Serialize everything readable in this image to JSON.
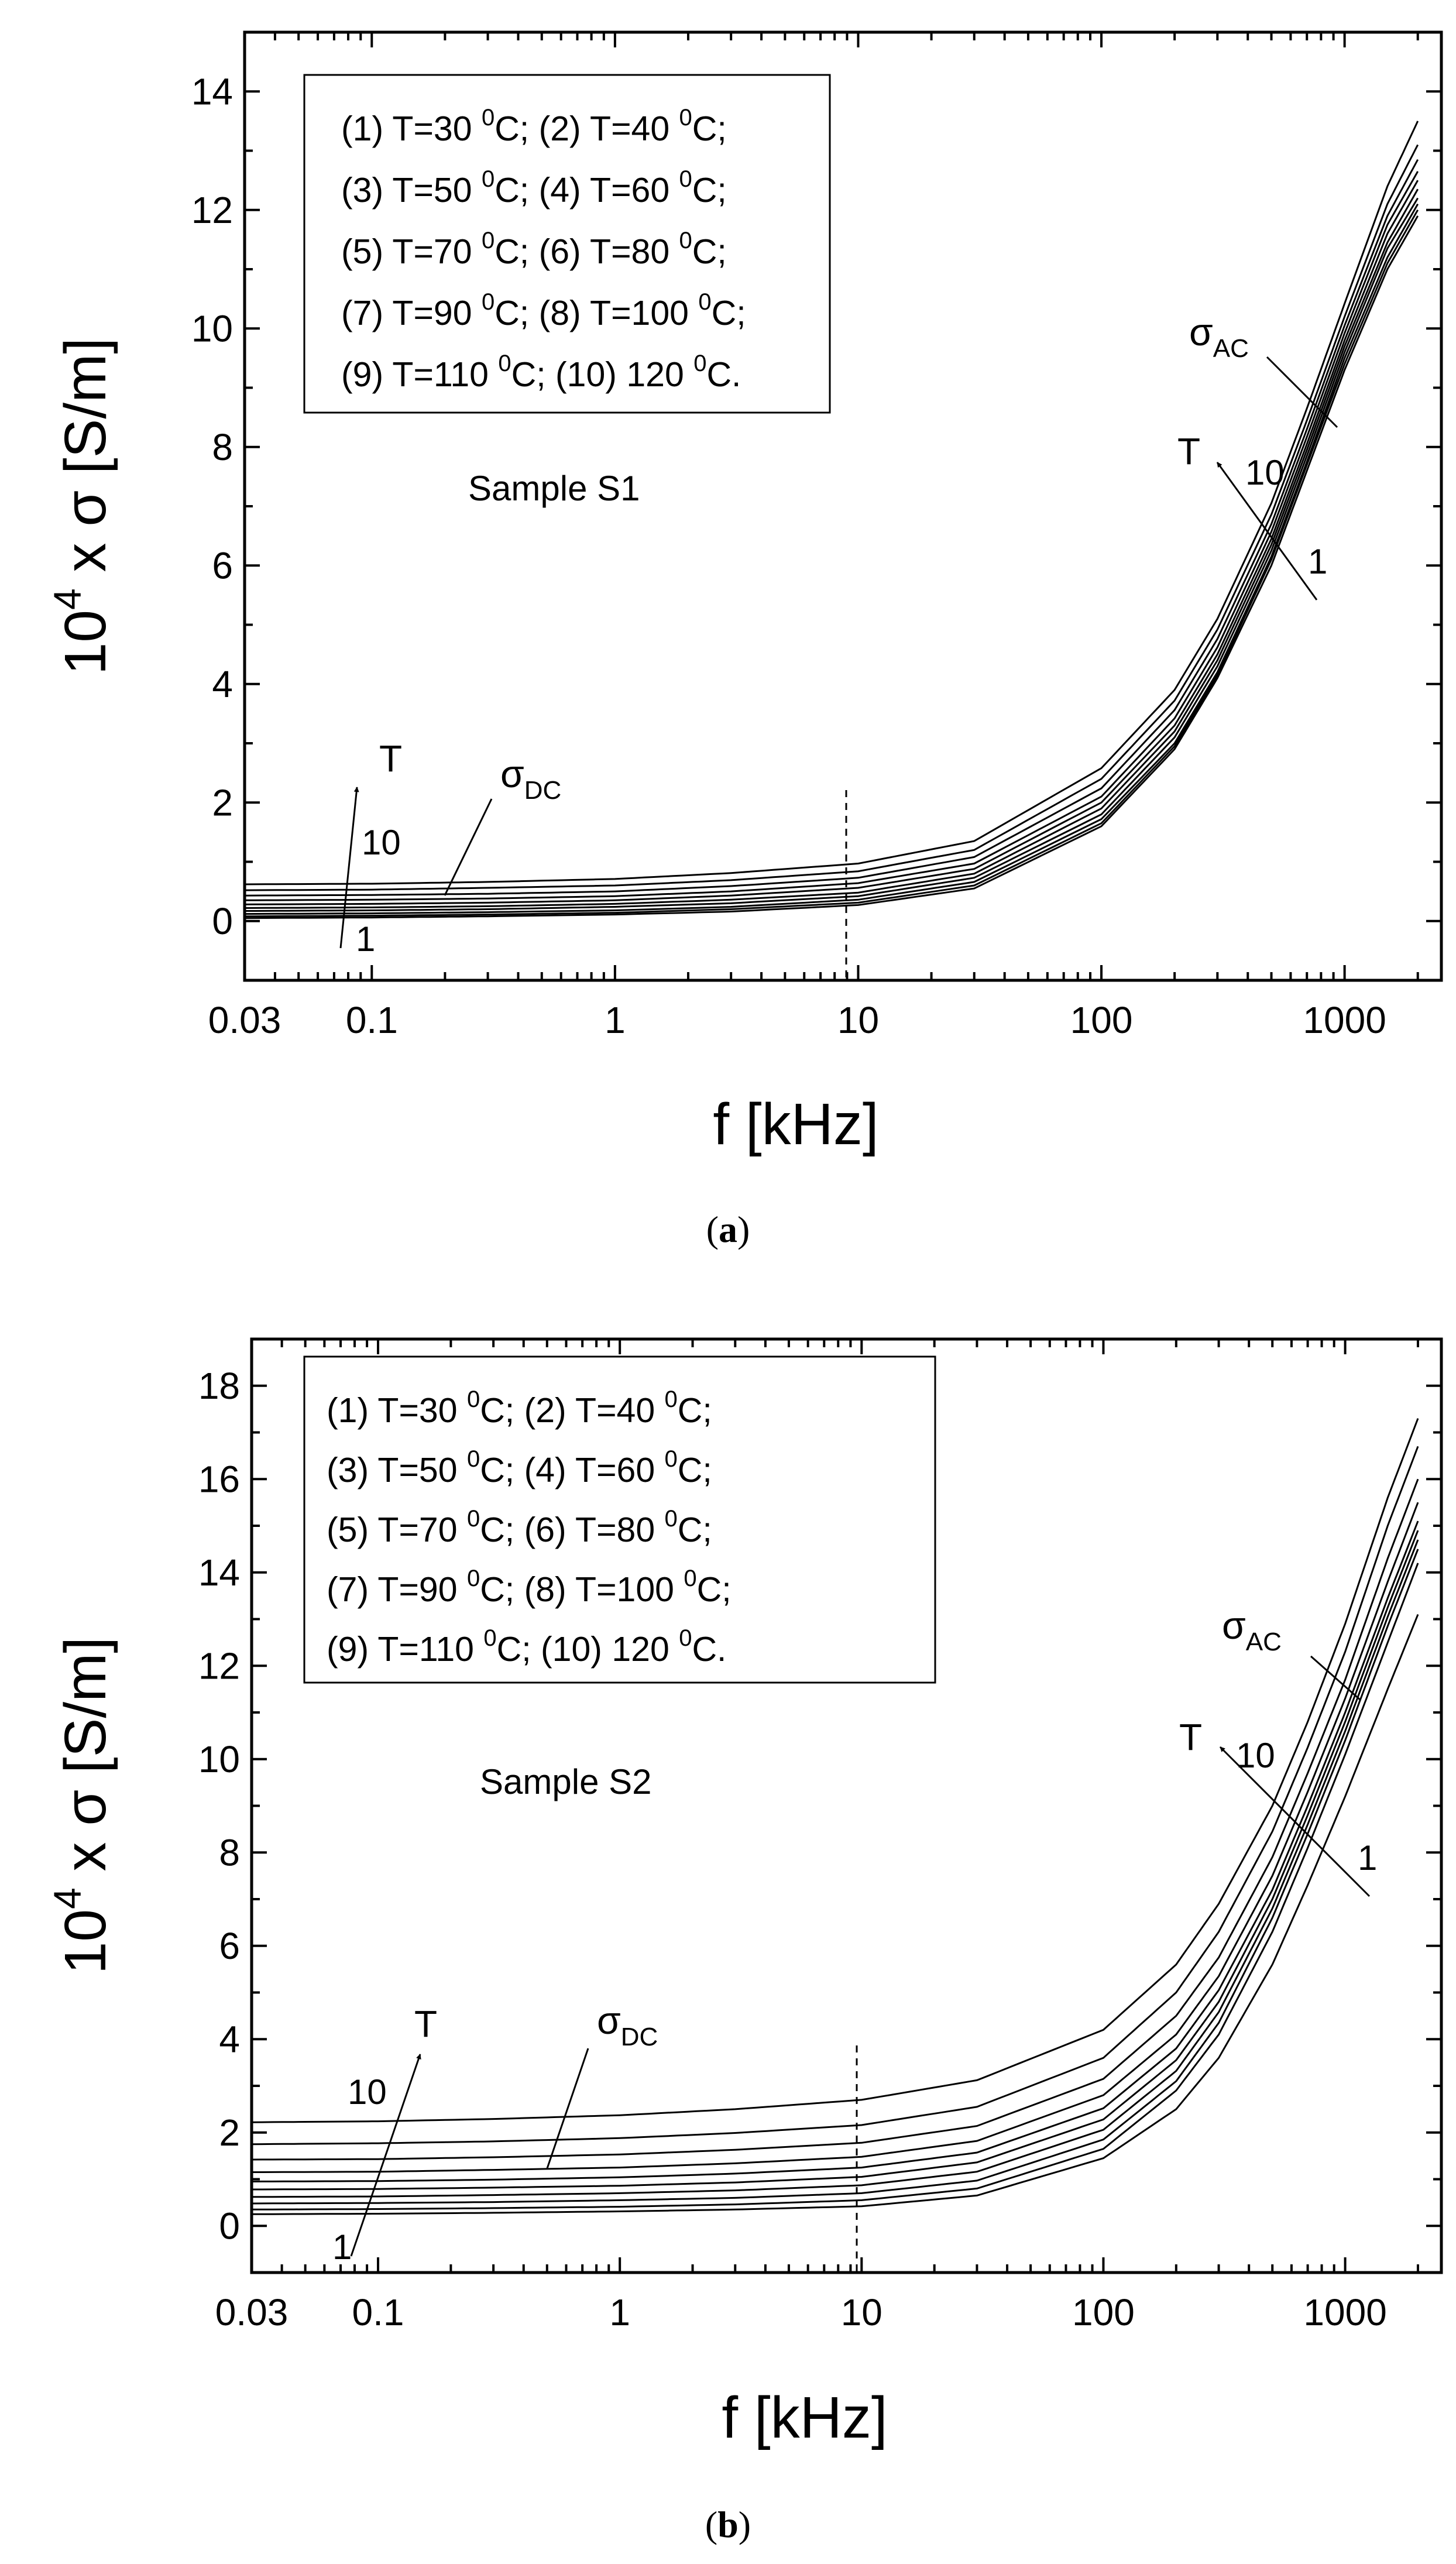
{
  "figure": {
    "panels": [
      {
        "caption_open": "(",
        "caption_letter": "a",
        "caption_close": ")",
        "sample_label": "Sample S1",
        "ylabel": {
          "prefix": "10",
          "exponent": "4",
          "suffix": " x σ [S/m]"
        },
        "xlabel": "f [kHz]",
        "sigma_ac": {
          "main": "σ",
          "sub": "AC"
        },
        "sigma_dc": {
          "main": "σ",
          "sub": "DC"
        },
        "arrow_labels": {
          "T": "T",
          "high": "10",
          "low": "1"
        },
        "xticks": [
          "0.03",
          "0.1",
          "1",
          "10",
          "100",
          "1000"
        ],
        "yticks": [
          "0",
          "2",
          "4",
          "6",
          "8",
          "10",
          "12",
          "14"
        ],
        "legend": [
          [
            "(1) T=30 ",
            "0",
            "C; (2) T=40 ",
            "0",
            "C;"
          ],
          [
            "(3) T=50 ",
            "0",
            "C; (4) T=60 ",
            "0",
            "C;"
          ],
          [
            "(5) T=70 ",
            "0",
            "C; (6) T=80 ",
            "0",
            "C;"
          ],
          [
            "(7) T=90 ",
            "0",
            "C; (8) T=100 ",
            "0",
            "C;"
          ],
          [
            "(9) T=110 ",
            "0",
            "C; (10) 120 ",
            "0",
            "C."
          ]
        ]
      },
      {
        "caption_open": "(",
        "caption_letter": "b",
        "caption_close": ")",
        "sample_label": "Sample S2",
        "ylabel": {
          "prefix": "10",
          "exponent": "4",
          "suffix": " x σ [S/m]"
        },
        "xlabel": "f [kHz]",
        "sigma_ac": {
          "main": "σ",
          "sub": "AC"
        },
        "sigma_dc": {
          "main": "σ",
          "sub": "DC"
        },
        "arrow_labels": {
          "T": "T",
          "high": "10",
          "low": "1"
        },
        "xticks": [
          "0.03",
          "0.1",
          "1",
          "10",
          "100",
          "1000"
        ],
        "yticks": [
          "0",
          "2",
          "4",
          "6",
          "8",
          "10",
          "12",
          "14",
          "16",
          "18"
        ],
        "legend": [
          [
            "(1) T=30 ",
            "0",
            "C; (2) T=40 ",
            "0",
            "C;"
          ],
          [
            "(3) T=50 ",
            "0",
            "C; (4) T=60 ",
            "0",
            "C;"
          ],
          [
            "(5) T=70 ",
            "0",
            "C; (6) T=80 ",
            "0",
            "C;"
          ],
          [
            "(7) T=90 ",
            "0",
            "C; (8) T=100 ",
            "0",
            "C;"
          ],
          [
            "(9) T=110 ",
            "0",
            "C; (10) 120 ",
            "0",
            "C."
          ]
        ]
      }
    ]
  },
  "chart_data": [
    {
      "type": "line",
      "title": "Sample S1",
      "xlabel": "f [kHz]",
      "ylabel": "10^4 x σ [S/m]",
      "xscale": "log",
      "xlim": [
        0.03,
        2500
      ],
      "ylim": [
        -1,
        15
      ],
      "xticks": [
        0.03,
        0.1,
        1,
        10,
        100,
        1000
      ],
      "yticks": [
        0,
        2,
        4,
        6,
        8,
        10,
        12,
        14
      ],
      "grid": false,
      "legend_position": "top-left",
      "reference_line_x": 10,
      "x": [
        0.03,
        0.1,
        0.3,
        1,
        3,
        10,
        30,
        100,
        200,
        300,
        500,
        700,
        1000,
        1500,
        2000
      ],
      "series": [
        {
          "name": "(1) T=30 0C",
          "values": [
            0.05,
            0.06,
            0.08,
            0.11,
            0.16,
            0.27,
            0.55,
            1.6,
            2.9,
            4.1,
            6.0,
            7.6,
            9.3,
            11.0,
            11.9
          ]
        },
        {
          "name": "(2) T=40 0C",
          "values": [
            0.08,
            0.09,
            0.11,
            0.14,
            0.2,
            0.31,
            0.6,
            1.65,
            2.95,
            4.15,
            6.1,
            7.7,
            9.4,
            11.1,
            12.0
          ]
        },
        {
          "name": "(3) T=50 0C",
          "values": [
            0.12,
            0.13,
            0.15,
            0.18,
            0.24,
            0.36,
            0.66,
            1.72,
            3.0,
            4.2,
            6.15,
            7.75,
            9.5,
            11.2,
            12.1
          ]
        },
        {
          "name": "(4) T=60 0C",
          "values": [
            0.17,
            0.18,
            0.2,
            0.24,
            0.3,
            0.42,
            0.73,
            1.8,
            3.1,
            4.3,
            6.25,
            7.85,
            9.6,
            11.35,
            12.2
          ]
        },
        {
          "name": "(5) T=70 0C",
          "values": [
            0.22,
            0.23,
            0.25,
            0.29,
            0.36,
            0.48,
            0.8,
            1.9,
            3.2,
            4.4,
            6.35,
            7.95,
            9.7,
            11.45,
            12.35
          ]
        },
        {
          "name": "(6) T=80 0C",
          "values": [
            0.28,
            0.29,
            0.31,
            0.35,
            0.43,
            0.56,
            0.88,
            2.0,
            3.3,
            4.5,
            6.45,
            8.05,
            9.8,
            11.6,
            12.5
          ]
        },
        {
          "name": "(7) T=90 0C",
          "values": [
            0.35,
            0.36,
            0.38,
            0.42,
            0.5,
            0.64,
            0.97,
            2.1,
            3.42,
            4.62,
            6.57,
            8.17,
            9.92,
            11.75,
            12.65
          ]
        },
        {
          "name": "(8) T=100 0C",
          "values": [
            0.43,
            0.44,
            0.46,
            0.5,
            0.59,
            0.73,
            1.08,
            2.24,
            3.56,
            4.76,
            6.7,
            8.3,
            10.05,
            11.9,
            12.85
          ]
        },
        {
          "name": "(9) T=110 0C",
          "values": [
            0.52,
            0.53,
            0.56,
            0.6,
            0.69,
            0.84,
            1.2,
            2.4,
            3.72,
            4.92,
            6.86,
            8.45,
            10.2,
            12.1,
            13.1
          ]
        },
        {
          "name": "(10) 120 0C",
          "values": [
            0.62,
            0.63,
            0.66,
            0.71,
            0.81,
            0.97,
            1.35,
            2.58,
            3.9,
            5.1,
            7.05,
            8.65,
            10.42,
            12.4,
            13.5
          ]
        }
      ],
      "annotations": [
        "Sample S1",
        "σAC",
        "σDC",
        "T",
        "10",
        "1"
      ]
    },
    {
      "type": "line",
      "title": "Sample S2",
      "xlabel": "f [kHz]",
      "ylabel": "10^4 x σ [S/m]",
      "xscale": "log",
      "xlim": [
        0.03,
        2500
      ],
      "ylim": [
        -1,
        19
      ],
      "xticks": [
        0.03,
        0.1,
        1,
        10,
        100,
        1000
      ],
      "yticks": [
        0,
        2,
        4,
        6,
        8,
        10,
        12,
        14,
        16,
        18
      ],
      "grid": false,
      "legend_position": "top-left",
      "reference_line_x": 10,
      "x": [
        0.03,
        0.1,
        0.3,
        1,
        3,
        10,
        30,
        100,
        200,
        300,
        500,
        700,
        1000,
        1500,
        2000
      ],
      "series": [
        {
          "name": "(1) T=30 0C",
          "values": [
            0.25,
            0.26,
            0.28,
            0.31,
            0.35,
            0.42,
            0.65,
            1.45,
            2.5,
            3.6,
            5.6,
            7.3,
            9.2,
            11.5,
            13.1
          ]
        },
        {
          "name": "(2) T=40 0C",
          "values": [
            0.35,
            0.36,
            0.38,
            0.41,
            0.46,
            0.55,
            0.8,
            1.65,
            2.9,
            4.1,
            6.3,
            8.1,
            10.1,
            12.5,
            14.2
          ]
        },
        {
          "name": "(3) T=50 0C",
          "values": [
            0.48,
            0.49,
            0.51,
            0.55,
            0.6,
            0.7,
            0.97,
            1.85,
            3.1,
            4.35,
            6.6,
            8.4,
            10.4,
            12.85,
            14.5
          ]
        },
        {
          "name": "(4) T=60 0C",
          "values": [
            0.62,
            0.63,
            0.66,
            0.7,
            0.76,
            0.87,
            1.16,
            2.06,
            3.32,
            4.58,
            6.8,
            8.6,
            10.6,
            13.05,
            14.7
          ]
        },
        {
          "name": "(5) T=70 0C",
          "values": [
            0.78,
            0.79,
            0.82,
            0.86,
            0.93,
            1.05,
            1.36,
            2.28,
            3.55,
            4.8,
            7.0,
            8.8,
            10.8,
            13.25,
            14.9
          ]
        },
        {
          "name": "(6) T=80 0C",
          "values": [
            0.95,
            0.96,
            0.99,
            1.04,
            1.12,
            1.25,
            1.57,
            2.52,
            3.8,
            5.05,
            7.2,
            9.0,
            11.0,
            13.45,
            15.1
          ]
        },
        {
          "name": "(7) T=90 0C",
          "values": [
            1.15,
            1.16,
            1.2,
            1.25,
            1.34,
            1.48,
            1.82,
            2.8,
            4.1,
            5.35,
            7.5,
            9.3,
            11.3,
            13.8,
            15.5
          ]
        },
        {
          "name": "(8) T=100 0C",
          "values": [
            1.42,
            1.43,
            1.47,
            1.53,
            1.63,
            1.78,
            2.14,
            3.15,
            4.5,
            5.75,
            7.9,
            9.7,
            11.7,
            14.3,
            16.0
          ]
        },
        {
          "name": "(9) T=110 0C",
          "values": [
            1.75,
            1.77,
            1.81,
            1.88,
            1.99,
            2.16,
            2.55,
            3.6,
            5.0,
            6.3,
            8.45,
            10.25,
            12.3,
            15.0,
            16.7
          ]
        },
        {
          "name": "(10) 120 0C",
          "values": [
            2.22,
            2.24,
            2.29,
            2.37,
            2.5,
            2.7,
            3.12,
            4.2,
            5.6,
            6.9,
            9.0,
            10.8,
            12.9,
            15.6,
            17.3
          ]
        }
      ],
      "annotations": [
        "Sample S2",
        "σAC",
        "σDC",
        "T",
        "10",
        "1"
      ]
    }
  ]
}
